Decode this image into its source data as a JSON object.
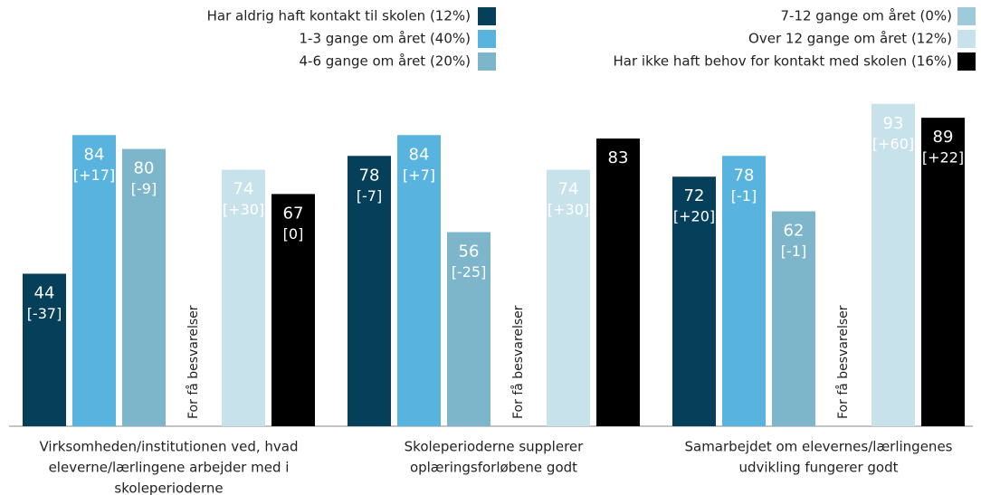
{
  "chart_data": {
    "type": "bar",
    "categories": [
      [
        "Virksomheden/institutionen ved, hvad",
        "eleverne/lærlingene arbejder med i",
        "skoleperioderne"
      ],
      [
        "Skoleperioderne supplerer",
        "oplæringsforløbene godt"
      ],
      [
        "Samarbejdet om elevernes/lærlingenes",
        "udvikling fungerer godt"
      ]
    ],
    "series": [
      {
        "name": "Har aldrig haft kontakt til skolen (12%)",
        "color": "#063f5a",
        "values": [
          44,
          78,
          72
        ],
        "changes": [
          "[-37]",
          "[-7]",
          "[+20]"
        ]
      },
      {
        "name": "1-3 gange om året (40%)",
        "color": "#58b4df",
        "values": [
          84,
          84,
          78
        ],
        "changes": [
          "[+17]",
          "[+7]",
          "[-1]"
        ]
      },
      {
        "name": "4-6 gange om året (20%)",
        "color": "#7db5ca",
        "values": [
          80,
          56,
          62
        ],
        "changes": [
          "[-9]",
          "[-25]",
          "[-1]"
        ]
      },
      {
        "name": "7-12 gange om året (0%)",
        "color": "#9ecadb",
        "values": [
          null,
          null,
          null
        ],
        "annotation": "For få besvarelser"
      },
      {
        "name": "Over 12 gange om året (12%)",
        "color": "#c8e2ec",
        "values": [
          74,
          74,
          93
        ],
        "changes": [
          "[+30]",
          "[+30]",
          "[+60]"
        ]
      },
      {
        "name": "Har ikke haft behov for kontakt med skolen (16%)",
        "color": "#000000",
        "values": [
          67,
          83,
          89
        ],
        "changes": [
          "[0]",
          null,
          "[+22]"
        ]
      }
    ],
    "ylim": [
      0,
      100
    ]
  }
}
